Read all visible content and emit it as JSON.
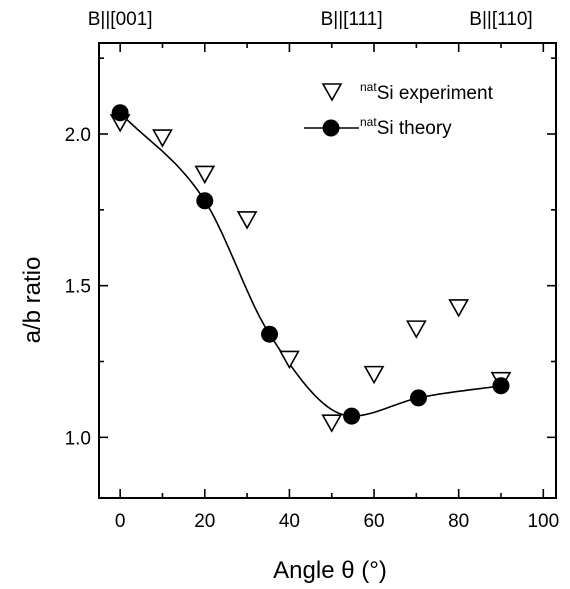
{
  "chart_data": {
    "type": "scatter",
    "xlabel": "Angle θ (°)",
    "ylabel": "a/b ratio",
    "xlim": [
      -5,
      103
    ],
    "ylim": [
      0.8,
      2.3
    ],
    "xticks": [
      0,
      20,
      40,
      60,
      80,
      100
    ],
    "yticks": [
      1.0,
      1.5,
      2.0
    ],
    "x_minor_step": 10,
    "y_minor_step": 0.25,
    "grid": false,
    "legend_position": "top-right",
    "top_annotations": [
      {
        "label": "B||[001]",
        "x": 0
      },
      {
        "label": "B||[111]",
        "x": 54.7
      },
      {
        "label": "B||[110]",
        "x": 90
      }
    ],
    "series": [
      {
        "name_sup": "nat",
        "name": "Si experiment",
        "marker": "open-down-triangle",
        "x": [
          0,
          10,
          20,
          30,
          40,
          50,
          60,
          70,
          80,
          90
        ],
        "y": [
          2.04,
          1.99,
          1.87,
          1.72,
          1.26,
          1.05,
          1.21,
          1.36,
          1.43,
          1.19
        ]
      },
      {
        "name_sup": "nat",
        "name": "Si theory",
        "marker": "filled-circle-line",
        "x": [
          0,
          20,
          35.3,
          54.7,
          70.5,
          90
        ],
        "y": [
          2.07,
          1.78,
          1.34,
          1.07,
          1.13,
          1.17
        ]
      }
    ]
  }
}
